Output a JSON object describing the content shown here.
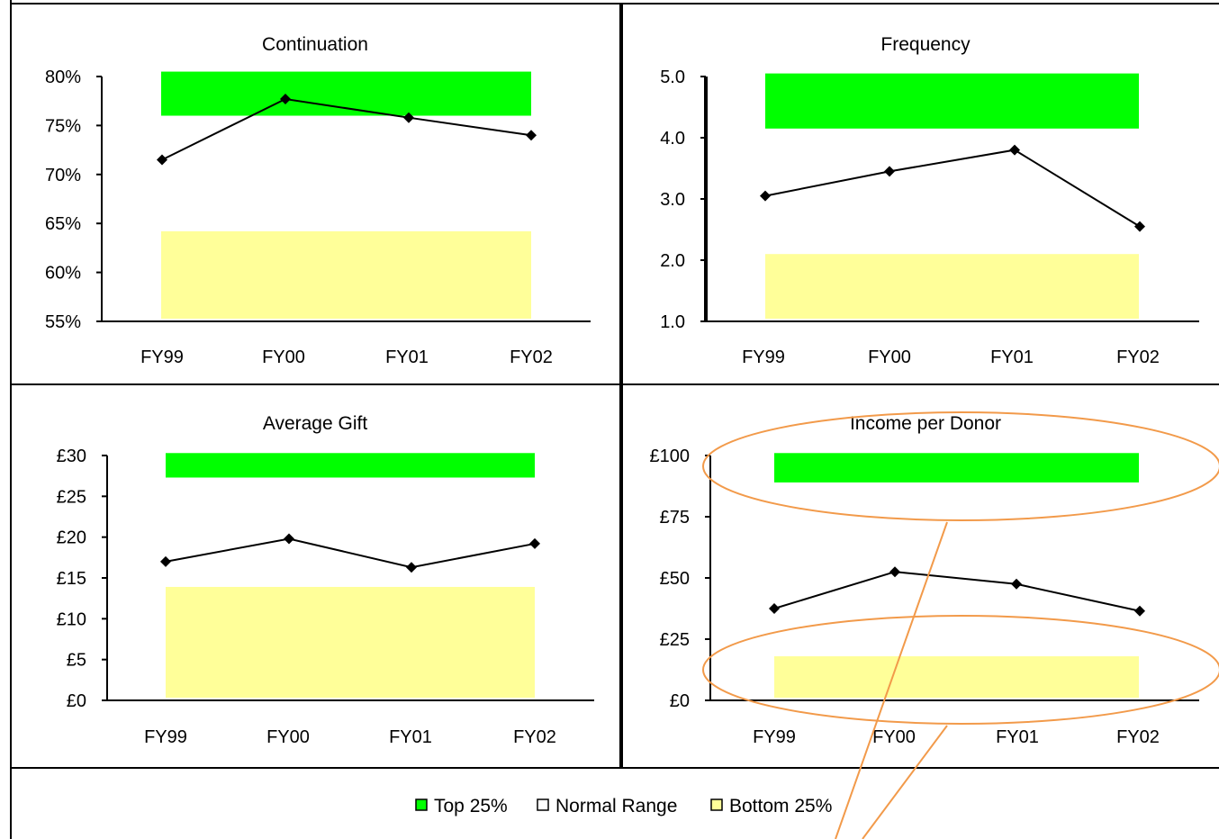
{
  "chart_data": [
    {
      "type": "line",
      "title": "Continuation",
      "categories": [
        "FY99",
        "FY00",
        "FY01",
        "FY02"
      ],
      "yticks": [
        "55%",
        "60%",
        "65%",
        "70%",
        "75%",
        "80%"
      ],
      "ylim": [
        55,
        80
      ],
      "values": [
        71.5,
        77.7,
        75.8,
        74.0
      ],
      "bands": {
        "top": [
          76,
          80.5
        ],
        "bottom": [
          55,
          64.2
        ]
      }
    },
    {
      "type": "line",
      "title": "Frequency",
      "categories": [
        "FY99",
        "FY00",
        "FY01",
        "FY02"
      ],
      "yticks": [
        "1.0",
        "2.0",
        "3.0",
        "4.0",
        "5.0"
      ],
      "ylim": [
        1,
        5
      ],
      "values": [
        3.05,
        3.45,
        3.8,
        2.55
      ],
      "bands": {
        "top": [
          4.15,
          5.05
        ],
        "bottom": [
          1,
          2.1
        ]
      }
    },
    {
      "type": "line",
      "title": "Average Gift",
      "categories": [
        "FY99",
        "FY00",
        "FY01",
        "FY02"
      ],
      "yticks": [
        "£0",
        "£5",
        "£10",
        "£15",
        "£20",
        "£25",
        "£30"
      ],
      "ylim": [
        0,
        30
      ],
      "values": [
        17.0,
        19.8,
        16.3,
        19.2
      ],
      "bands": {
        "top": [
          27.3,
          30.3
        ],
        "bottom": [
          0,
          13.9
        ]
      }
    },
    {
      "type": "line",
      "title": "Income per Donor",
      "categories": [
        "FY99",
        "FY00",
        "FY01",
        "FY02"
      ],
      "yticks": [
        "£0",
        "£25",
        "£50",
        "£75",
        "£100"
      ],
      "ylim": [
        0,
        100
      ],
      "values": [
        37.5,
        52.5,
        47.5,
        36.5
      ],
      "bands": {
        "top": [
          89,
          101
        ],
        "bottom": [
          0,
          18
        ]
      }
    }
  ],
  "legend": [
    {
      "label": "Top 25%",
      "color": "#00ff00"
    },
    {
      "label": "Normal Range",
      "color": "#ffffff"
    },
    {
      "label": "Bottom 25%",
      "color": "#ffff99"
    }
  ],
  "colors": {
    "top_band": "#00ff00",
    "bottom_band": "#ffff99",
    "annotation": "#f29a4a"
  }
}
